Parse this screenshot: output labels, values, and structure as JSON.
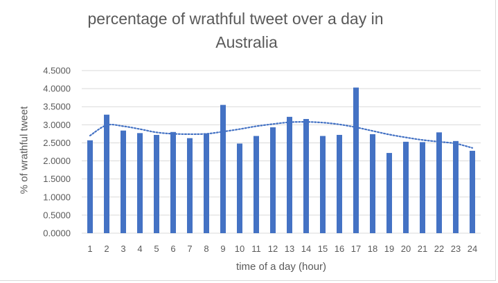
{
  "chart_data": {
    "type": "bar",
    "title_line1": "percentage of wrathful tweet over a day in",
    "title_line2": "Australia",
    "xlabel": "time of a day (hour)",
    "ylabel": "% of wrathful tweet",
    "ylim": [
      0,
      4.5
    ],
    "yticks": [
      "0.0000",
      "0.5000",
      "1.0000",
      "1.5000",
      "2.0000",
      "2.5000",
      "3.0000",
      "3.5000",
      "4.0000",
      "4.5000"
    ],
    "categories": [
      "1",
      "2",
      "3",
      "4",
      "5",
      "6",
      "7",
      "8",
      "9",
      "10",
      "11",
      "12",
      "13",
      "14",
      "15",
      "16",
      "17",
      "18",
      "19",
      "20",
      "21",
      "22",
      "23",
      "24"
    ],
    "values": [
      2.57,
      3.28,
      2.84,
      2.77,
      2.72,
      2.8,
      2.63,
      2.76,
      3.55,
      2.48,
      2.69,
      2.93,
      3.22,
      3.16,
      2.69,
      2.72,
      4.03,
      2.74,
      2.22,
      2.53,
      2.52,
      2.79,
      2.55,
      2.28
    ],
    "trendline": [
      2.7,
      2.99,
      2.96,
      2.88,
      2.79,
      2.75,
      2.74,
      2.75,
      2.81,
      2.88,
      2.96,
      3.02,
      3.07,
      3.08,
      3.06,
      3.01,
      2.93,
      2.83,
      2.73,
      2.65,
      2.58,
      2.53,
      2.48,
      2.36
    ],
    "grid": true,
    "colors": {
      "bar": "#4472c4",
      "trendline": "#4472c4",
      "grid": "#d9d9d9",
      "text": "#595959"
    }
  }
}
